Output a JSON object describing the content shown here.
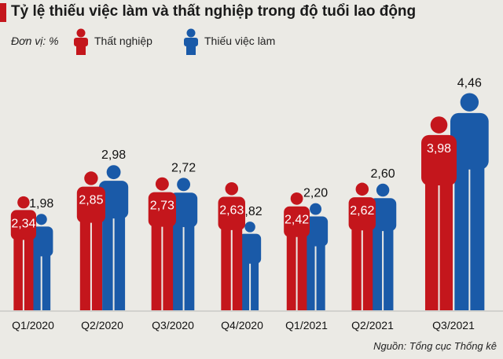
{
  "title": "Tỷ lệ thiếu việc làm và thất nghiệp trong độ tuổi lao động",
  "unit_label": "Đơn vị: %",
  "source": "Nguồn: Tổng cục Thống kê",
  "colors": {
    "unemployment": "#c4161c",
    "underemployment": "#1a5aa8",
    "background": "#ebeae5"
  },
  "chart_data": {
    "type": "bar",
    "categories": [
      "Q1/2020",
      "Q2/2020",
      "Q3/2020",
      "Q4/2020",
      "Q1/2021",
      "Q2/2021",
      "Q3/2021"
    ],
    "series": [
      {
        "name": "Thất nghiệp",
        "values": [
          2.34,
          2.85,
          2.73,
          2.63,
          2.42,
          2.62,
          3.98
        ]
      },
      {
        "name": "Thiếu việc làm",
        "values": [
          1.98,
          2.98,
          2.72,
          1.82,
          2.2,
          2.6,
          4.46
        ]
      }
    ],
    "value_labels": [
      [
        "2,34",
        "2,85",
        "2,73",
        "2,63",
        "2,42",
        "2,62",
        "3,98"
      ],
      [
        "1,98",
        "2,98",
        "2,72",
        "1,82",
        "2,20",
        "2,60",
        "4,46"
      ]
    ],
    "legend": [
      "Thất nghiệp",
      "Thiếu việc làm"
    ],
    "legend_position": "top-left",
    "grid": false,
    "ylim": [
      0,
      4.6
    ]
  }
}
